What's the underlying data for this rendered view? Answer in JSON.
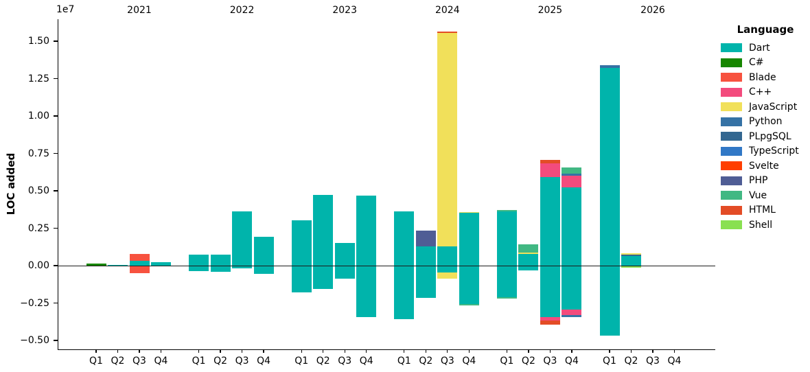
{
  "chart_data": {
    "type": "bar",
    "stacked": true,
    "orientation": "vertical",
    "title": "",
    "xlabel": "",
    "ylabel": "LOC added",
    "offset_text": "1e7",
    "units": "segment values are in units of 1e7 lines of code",
    "grid": false,
    "ylim_e7": [
      -0.56,
      1.65
    ],
    "legend_title": "Language",
    "legend_position": "upper right",
    "yticks": [
      {
        "label": "1.50",
        "value": 1.5
      },
      {
        "label": "1.25",
        "value": 1.25
      },
      {
        "label": "1.00",
        "value": 1.0
      },
      {
        "label": "0.75",
        "value": 0.75
      },
      {
        "label": "0.50",
        "value": 0.5
      },
      {
        "label": "0.25",
        "value": 0.25
      },
      {
        "label": "0.00",
        "value": 0.0
      },
      {
        "label": "−0.25",
        "value": -0.25
      },
      {
        "label": "−0.50",
        "value": -0.5
      }
    ],
    "languages": [
      {
        "name": "Dart",
        "color": "#00B4AB"
      },
      {
        "name": "C#",
        "color": "#178600"
      },
      {
        "name": "Blade",
        "color": "#F7523F"
      },
      {
        "name": "C++",
        "color": "#F34B7D"
      },
      {
        "name": "JavaScript",
        "color": "#F1E05A"
      },
      {
        "name": "Python",
        "color": "#3572A5"
      },
      {
        "name": "PLpgSQL",
        "color": "#336790"
      },
      {
        "name": "TypeScript",
        "color": "#3178C6"
      },
      {
        "name": "Svelte",
        "color": "#FF3E00"
      },
      {
        "name": "PHP",
        "color": "#4F5D95"
      },
      {
        "name": "Vue",
        "color": "#41B883"
      },
      {
        "name": "HTML",
        "color": "#E34C26"
      },
      {
        "name": "Shell",
        "color": "#89E051"
      }
    ],
    "years": [
      {
        "year": "2021",
        "quarters": [
          {
            "label": "Q1",
            "pos": [
              [
                "C#",
                0.015
              ]
            ],
            "neg": []
          },
          {
            "label": "Q2",
            "pos": [
              [
                "Dart",
                0.006
              ]
            ],
            "neg": []
          },
          {
            "label": "Q3",
            "pos": [
              [
                "Dart",
                0.032
              ],
              [
                "Blade",
                0.044
              ]
            ],
            "neg": [
              [
                "Blade",
                0.049
              ]
            ]
          },
          {
            "label": "Q4",
            "pos": [
              [
                "Dart",
                0.022
              ]
            ],
            "neg": []
          }
        ]
      },
      {
        "year": "2022",
        "quarters": [
          {
            "label": "Q1",
            "pos": [
              [
                "Dart",
                0.072
              ]
            ],
            "neg": [
              [
                "Dart",
                0.035
              ]
            ]
          },
          {
            "label": "Q2",
            "pos": [
              [
                "Dart",
                0.072
              ]
            ],
            "neg": [
              [
                "Dart",
                0.043
              ]
            ]
          },
          {
            "label": "Q3",
            "pos": [
              [
                "Dart",
                0.363
              ]
            ],
            "neg": [
              [
                "Dart",
                0.019
              ]
            ]
          },
          {
            "label": "Q4",
            "pos": [
              [
                "Dart",
                0.192
              ]
            ],
            "neg": [
              [
                "Dart",
                0.057
              ]
            ]
          }
        ]
      },
      {
        "year": "2023",
        "quarters": [
          {
            "label": "Q1",
            "pos": [
              [
                "Dart",
                0.302
              ]
            ],
            "neg": [
              [
                "Dart",
                0.181
              ]
            ]
          },
          {
            "label": "Q2",
            "pos": [
              [
                "Dart",
                0.471
              ]
            ],
            "neg": [
              [
                "Dart",
                0.158
              ]
            ]
          },
          {
            "label": "Q3",
            "pos": [
              [
                "Dart",
                0.15
              ]
            ],
            "neg": [
              [
                "Dart",
                0.086
              ]
            ]
          },
          {
            "label": "Q4",
            "pos": [
              [
                "Dart",
                0.468
              ]
            ],
            "neg": [
              [
                "Dart",
                0.344
              ]
            ]
          }
        ]
      },
      {
        "year": "2024",
        "quarters": [
          {
            "label": "Q1",
            "pos": [
              [
                "Dart",
                0.362
              ]
            ],
            "neg": [
              [
                "Dart",
                0.359
              ]
            ]
          },
          {
            "label": "Q2",
            "pos": [
              [
                "Dart",
                0.13
              ],
              [
                "PHP",
                0.105
              ]
            ],
            "neg": [
              [
                "Dart",
                0.216
              ]
            ]
          },
          {
            "label": "Q3",
            "pos": [
              [
                "Dart",
                0.13
              ],
              [
                "JavaScript",
                1.424
              ],
              [
                "HTML",
                0.01
              ]
            ],
            "neg": [
              [
                "Dart",
                0.048
              ],
              [
                "JavaScript",
                0.039
              ]
            ]
          },
          {
            "label": "Q4",
            "pos": [
              [
                "Dart",
                0.352
              ],
              [
                "JavaScript",
                0.007
              ]
            ],
            "neg": [
              [
                "Dart",
                0.258
              ],
              [
                "Vue",
                0.01
              ]
            ]
          }
        ]
      },
      {
        "year": "2025",
        "quarters": [
          {
            "label": "Q1",
            "pos": [
              [
                "Dart",
                0.362
              ],
              [
                "Vue",
                0.011
              ]
            ],
            "neg": [
              [
                "Dart",
                0.213
              ],
              [
                "Vue",
                0.009
              ]
            ]
          },
          {
            "label": "Q2",
            "pos": [
              [
                "Dart",
                0.076
              ],
              [
                "JavaScript",
                0.013
              ],
              [
                "Vue",
                0.055
              ]
            ],
            "neg": [
              [
                "Dart",
                0.03
              ]
            ]
          },
          {
            "label": "Q3",
            "pos": [
              [
                "Dart",
                0.592
              ],
              [
                "C++",
                0.091
              ],
              [
                "HTML",
                0.023
              ]
            ],
            "neg": [
              [
                "Dart",
                0.345
              ],
              [
                "C++",
                0.02
              ],
              [
                "HTML",
                0.03
              ]
            ]
          },
          {
            "label": "Q4",
            "pos": [
              [
                "Dart",
                0.524
              ],
              [
                "C++",
                0.078
              ],
              [
                "Python",
                0.014
              ],
              [
                "Vue",
                0.039
              ]
            ],
            "neg": [
              [
                "Dart",
                0.292
              ],
              [
                "C++",
                0.038
              ],
              [
                "Python",
                0.013
              ]
            ]
          }
        ]
      },
      {
        "year": "2026",
        "quarters": [
          {
            "label": "Q1",
            "pos": [
              [
                "Dart",
                1.32
              ],
              [
                "Python",
                0.02
              ]
            ],
            "neg": [
              [
                "Dart",
                0.468
              ]
            ]
          },
          {
            "label": "Q2",
            "pos": [
              [
                "Dart",
                0.065
              ],
              [
                "PLpgSQL",
                0.01
              ],
              [
                "JavaScript",
                0.007
              ]
            ],
            "neg": [
              [
                "Shell",
                0.012
              ]
            ]
          },
          {
            "label": "Q3",
            "pos": [],
            "neg": []
          },
          {
            "label": "Q4",
            "pos": [],
            "neg": []
          }
        ]
      }
    ]
  }
}
